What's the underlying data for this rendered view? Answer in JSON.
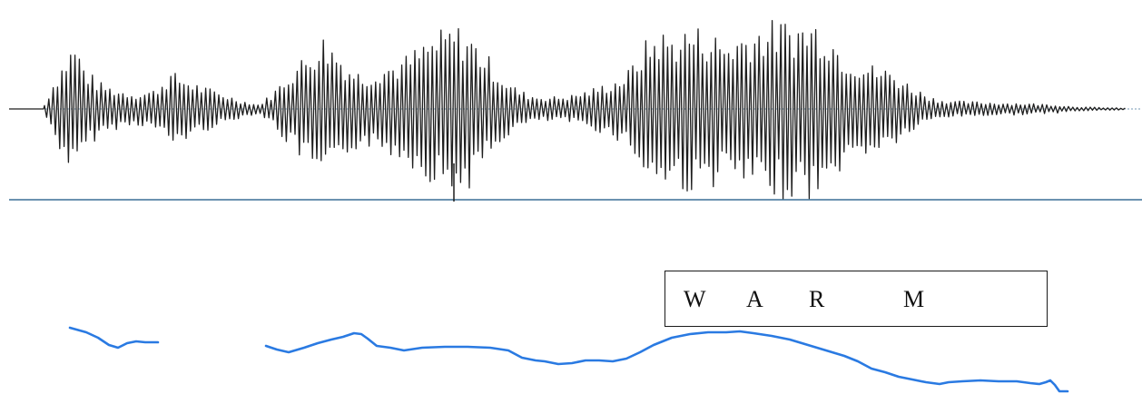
{
  "colors": {
    "waveform": "#1e1e1e",
    "baseline": "#3a6f95",
    "pitch_contour": "#2a7ae2",
    "box_border": "#1a1a1a"
  },
  "word_label": {
    "letters": [
      "W",
      "A",
      "R",
      "M"
    ]
  }
}
